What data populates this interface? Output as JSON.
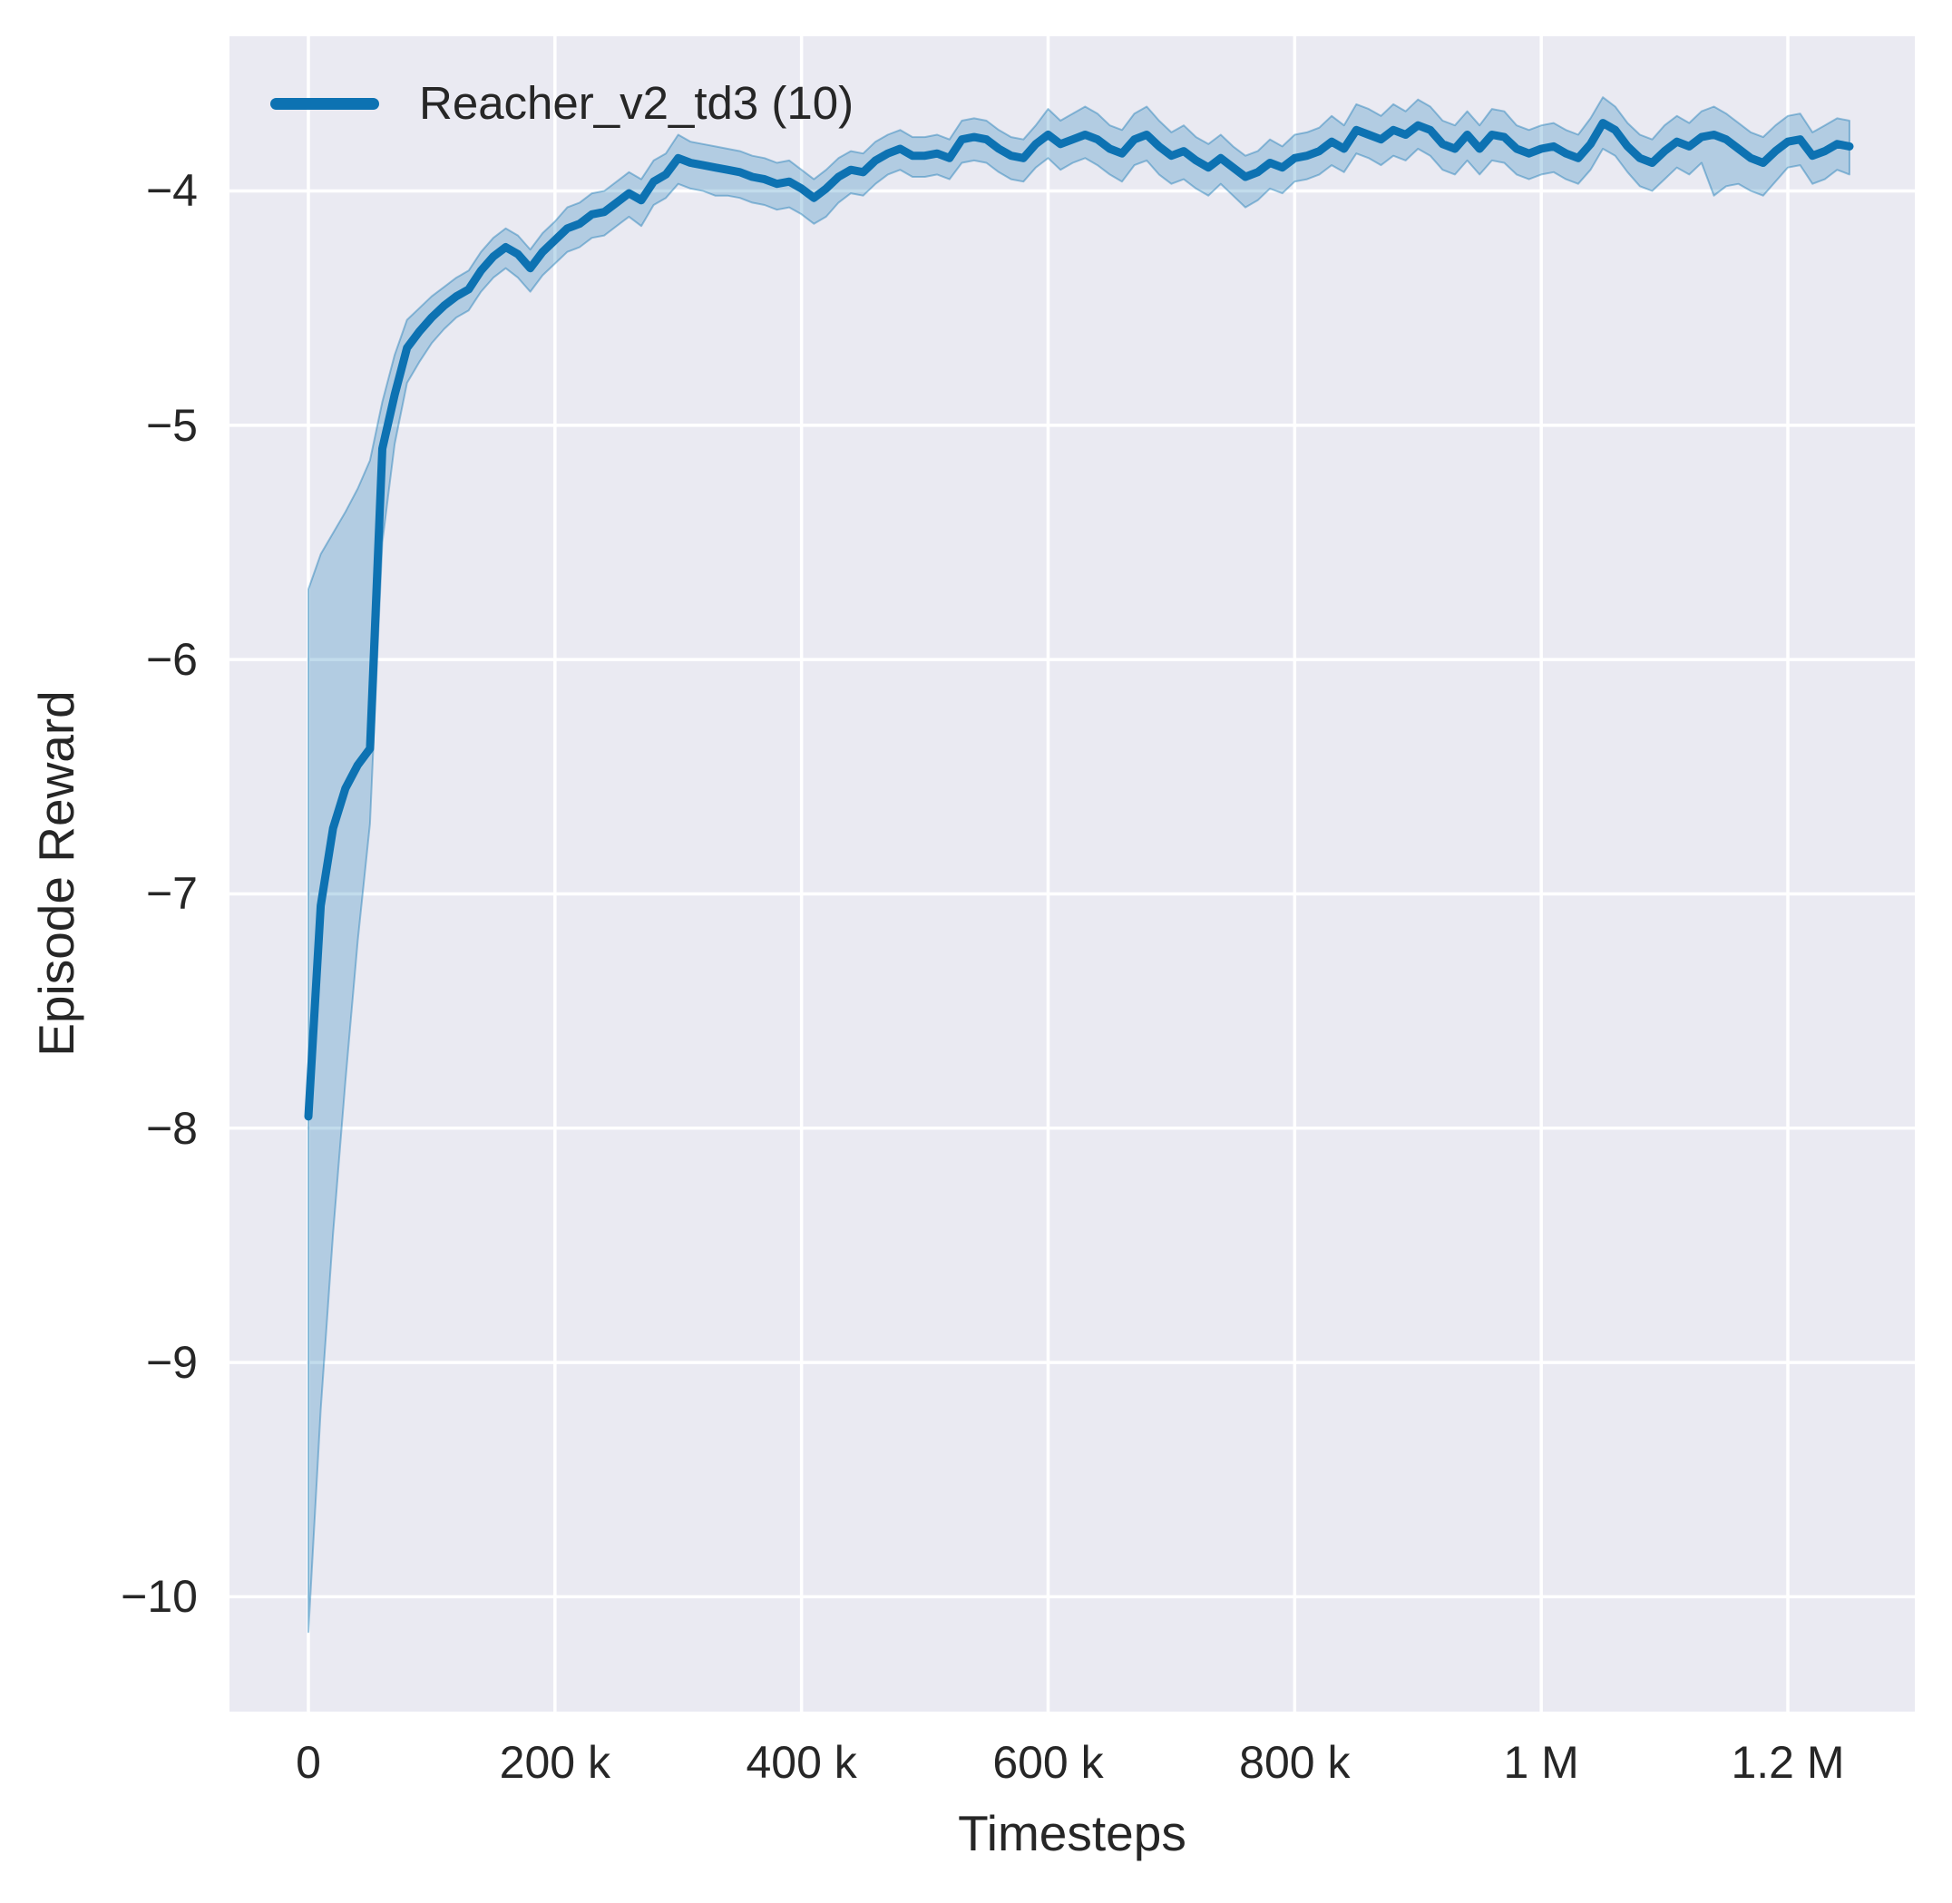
{
  "colors": {
    "figure_background": "#ffffff",
    "axes_background": "#eaeaf2",
    "grid": "#ffffff",
    "text": "#262626",
    "line": "#0d72b2",
    "band_fill": "rgba(13,114,178,0.25)",
    "band_edge": "rgba(13,114,178,0.40)"
  },
  "legend": {
    "label": "Reacher_v2_td3 (10)",
    "position": "upper-left",
    "frame": false
  },
  "chart_data": {
    "type": "line",
    "title": "",
    "xlabel": "Timesteps",
    "ylabel": "Episode Reward",
    "grid": true,
    "legend_position": "upper-left",
    "x_unit": "thousands of timesteps",
    "xlim_thousands": [
      -64,
      1303
    ],
    "ylim": [
      -10.49,
      -3.34
    ],
    "x_ticks": [
      {
        "value": 0,
        "label": "0"
      },
      {
        "value": 200,
        "label": "200 k"
      },
      {
        "value": 400,
        "label": "400 k"
      },
      {
        "value": 600,
        "label": "600 k"
      },
      {
        "value": 800,
        "label": "800 k"
      },
      {
        "value": 1000,
        "label": "1 M"
      },
      {
        "value": 1200,
        "label": "1.2 M"
      }
    ],
    "y_ticks": [
      {
        "value": -4,
        "label": "−4"
      },
      {
        "value": -5,
        "label": "−5"
      },
      {
        "value": -6,
        "label": "−6"
      },
      {
        "value": -7,
        "label": "−7"
      },
      {
        "value": -8,
        "label": "−8"
      },
      {
        "value": -9,
        "label": "−9"
      },
      {
        "value": -10,
        "label": "−10"
      }
    ],
    "series": [
      {
        "name": "Reacher_v2_td3 (10)",
        "color": "#0d72b2",
        "x_thousands": [
          0,
          10,
          20,
          30,
          40,
          50,
          60,
          70,
          80,
          90,
          100,
          110,
          120,
          130,
          140,
          150,
          160,
          170,
          180,
          190,
          200,
          210,
          220,
          230,
          240,
          250,
          260,
          270,
          280,
          290,
          300,
          310,
          320,
          330,
          340,
          350,
          360,
          370,
          380,
          390,
          400,
          410,
          420,
          430,
          440,
          450,
          460,
          470,
          480,
          490,
          500,
          510,
          520,
          530,
          540,
          550,
          560,
          570,
          580,
          590,
          600,
          610,
          620,
          630,
          640,
          650,
          660,
          670,
          680,
          690,
          700,
          710,
          720,
          730,
          740,
          750,
          760,
          770,
          780,
          790,
          800,
          810,
          820,
          830,
          840,
          850,
          860,
          870,
          880,
          890,
          900,
          910,
          920,
          930,
          940,
          950,
          960,
          970,
          980,
          990,
          1000,
          1010,
          1020,
          1030,
          1040,
          1050,
          1060,
          1070,
          1080,
          1090,
          1100,
          1110,
          1120,
          1130,
          1140,
          1150,
          1160,
          1170,
          1180,
          1190,
          1200,
          1210,
          1220,
          1230,
          1240,
          1250
        ],
        "mean": [
          -7.95,
          -7.05,
          -6.72,
          -6.55,
          -6.45,
          -6.38,
          -5.1,
          -4.87,
          -4.67,
          -4.6,
          -4.54,
          -4.49,
          -4.45,
          -4.42,
          -4.34,
          -4.28,
          -4.24,
          -4.27,
          -4.33,
          -4.26,
          -4.21,
          -4.16,
          -4.14,
          -4.1,
          -4.09,
          -4.05,
          -4.01,
          -4.04,
          -3.96,
          -3.93,
          -3.86,
          -3.88,
          -3.89,
          -3.9,
          -3.91,
          -3.92,
          -3.94,
          -3.95,
          -3.97,
          -3.96,
          -3.99,
          -4.03,
          -3.99,
          -3.94,
          -3.91,
          -3.92,
          -3.87,
          -3.84,
          -3.82,
          -3.85,
          -3.85,
          -3.84,
          -3.86,
          -3.78,
          -3.77,
          -3.78,
          -3.82,
          -3.85,
          -3.86,
          -3.8,
          -3.76,
          -3.8,
          -3.78,
          -3.76,
          -3.78,
          -3.82,
          -3.84,
          -3.78,
          -3.76,
          -3.81,
          -3.85,
          -3.83,
          -3.87,
          -3.9,
          -3.86,
          -3.9,
          -3.94,
          -3.92,
          -3.88,
          -3.9,
          -3.86,
          -3.85,
          -3.83,
          -3.79,
          -3.82,
          -3.74,
          -3.76,
          -3.78,
          -3.74,
          -3.76,
          -3.72,
          -3.74,
          -3.8,
          -3.82,
          -3.76,
          -3.82,
          -3.76,
          -3.77,
          -3.82,
          -3.84,
          -3.82,
          -3.81,
          -3.84,
          -3.86,
          -3.8,
          -3.71,
          -3.74,
          -3.81,
          -3.86,
          -3.88,
          -3.83,
          -3.79,
          -3.81,
          -3.77,
          -3.76,
          -3.78,
          -3.82,
          -3.86,
          -3.88,
          -3.83,
          -3.79,
          -3.78,
          -3.85,
          -3.83,
          -3.8,
          -3.81
        ],
        "ci_upper": [
          -5.7,
          -5.55,
          -5.46,
          -5.37,
          -5.27,
          -5.15,
          -4.9,
          -4.7,
          -4.55,
          -4.5,
          -4.45,
          -4.41,
          -4.37,
          -4.34,
          -4.26,
          -4.2,
          -4.16,
          -4.19,
          -4.25,
          -4.18,
          -4.13,
          -4.07,
          -4.05,
          -4.01,
          -4.0,
          -3.96,
          -3.92,
          -3.95,
          -3.87,
          -3.84,
          -3.76,
          -3.79,
          -3.8,
          -3.81,
          -3.82,
          -3.83,
          -3.85,
          -3.86,
          -3.88,
          -3.87,
          -3.91,
          -3.95,
          -3.91,
          -3.86,
          -3.83,
          -3.84,
          -3.79,
          -3.76,
          -3.74,
          -3.77,
          -3.77,
          -3.76,
          -3.78,
          -3.7,
          -3.69,
          -3.7,
          -3.74,
          -3.77,
          -3.78,
          -3.72,
          -3.65,
          -3.7,
          -3.67,
          -3.64,
          -3.67,
          -3.72,
          -3.74,
          -3.67,
          -3.64,
          -3.7,
          -3.75,
          -3.72,
          -3.77,
          -3.8,
          -3.76,
          -3.81,
          -3.85,
          -3.83,
          -3.78,
          -3.81,
          -3.76,
          -3.75,
          -3.73,
          -3.68,
          -3.72,
          -3.63,
          -3.65,
          -3.68,
          -3.63,
          -3.66,
          -3.61,
          -3.64,
          -3.7,
          -3.72,
          -3.66,
          -3.72,
          -3.65,
          -3.66,
          -3.72,
          -3.74,
          -3.72,
          -3.71,
          -3.74,
          -3.76,
          -3.69,
          -3.6,
          -3.64,
          -3.71,
          -3.76,
          -3.78,
          -3.72,
          -3.68,
          -3.71,
          -3.66,
          -3.64,
          -3.67,
          -3.71,
          -3.75,
          -3.77,
          -3.72,
          -3.68,
          -3.67,
          -3.75,
          -3.72,
          -3.69,
          -3.7
        ],
        "ci_lower": [
          -10.15,
          -9.2,
          -8.45,
          -7.8,
          -7.2,
          -6.7,
          -5.5,
          -5.08,
          -4.82,
          -4.73,
          -4.65,
          -4.59,
          -4.54,
          -4.51,
          -4.43,
          -4.37,
          -4.33,
          -4.37,
          -4.43,
          -4.36,
          -4.31,
          -4.26,
          -4.24,
          -4.2,
          -4.19,
          -4.15,
          -4.11,
          -4.15,
          -4.06,
          -4.03,
          -3.97,
          -3.99,
          -4.0,
          -4.02,
          -4.02,
          -4.03,
          -4.05,
          -4.06,
          -4.08,
          -4.07,
          -4.1,
          -4.14,
          -4.11,
          -4.05,
          -4.01,
          -4.02,
          -3.97,
          -3.93,
          -3.91,
          -3.94,
          -3.94,
          -3.93,
          -3.95,
          -3.88,
          -3.87,
          -3.88,
          -3.92,
          -3.95,
          -3.96,
          -3.9,
          -3.86,
          -3.91,
          -3.88,
          -3.86,
          -3.89,
          -3.93,
          -3.96,
          -3.89,
          -3.87,
          -3.93,
          -3.97,
          -3.95,
          -3.99,
          -4.02,
          -3.97,
          -4.02,
          -4.07,
          -4.04,
          -3.99,
          -4.01,
          -3.96,
          -3.95,
          -3.93,
          -3.89,
          -3.92,
          -3.84,
          -3.86,
          -3.89,
          -3.85,
          -3.87,
          -3.82,
          -3.85,
          -3.91,
          -3.93,
          -3.87,
          -3.93,
          -3.87,
          -3.88,
          -3.93,
          -3.95,
          -3.93,
          -3.92,
          -3.95,
          -3.97,
          -3.91,
          -3.82,
          -3.85,
          -3.92,
          -3.98,
          -4.0,
          -3.95,
          -3.9,
          -3.93,
          -3.88,
          -4.02,
          -3.98,
          -3.97,
          -4.0,
          -4.02,
          -3.96,
          -3.9,
          -3.89,
          -3.97,
          -3.95,
          -3.91,
          -3.93
        ]
      }
    ]
  }
}
